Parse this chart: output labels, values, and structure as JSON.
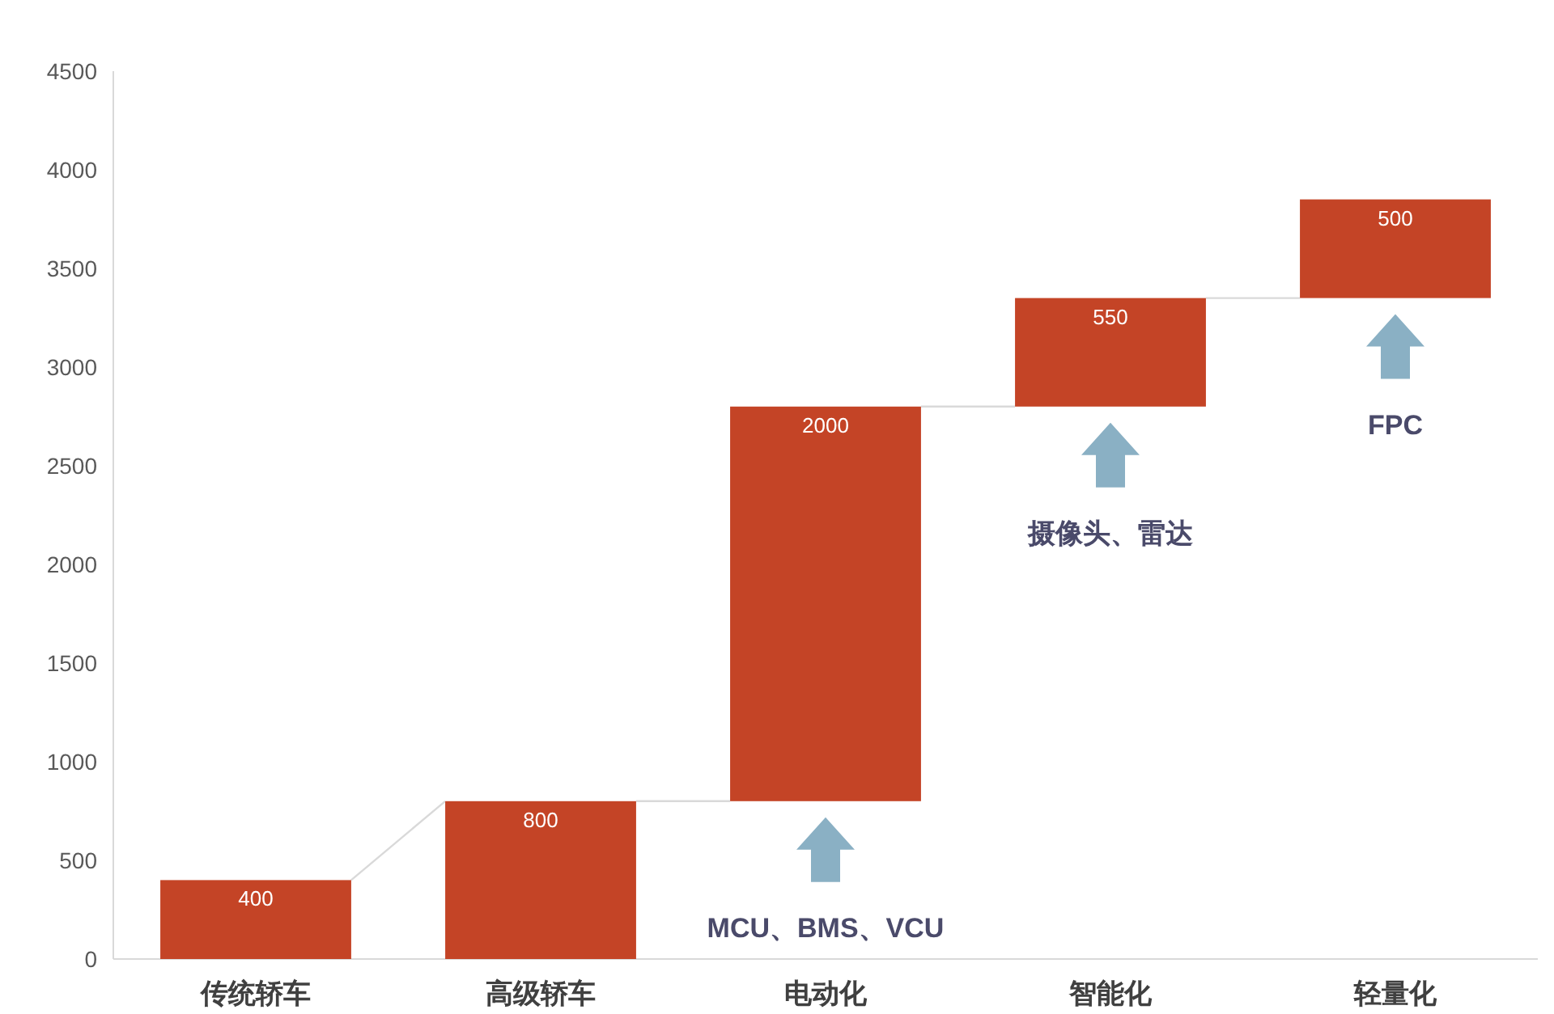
{
  "chart_data": {
    "type": "bar",
    "categories": [
      "传统轿车",
      "高级轿车",
      "电动化",
      "智能化",
      "轻量化"
    ],
    "values": [
      400,
      800,
      2000,
      550,
      500
    ],
    "base": [
      0,
      0,
      800,
      2800,
      3350
    ],
    "color": "#c44426",
    "data_labels": true,
    "ylim": [
      0,
      4500
    ],
    "yticks": [
      0,
      500,
      1000,
      1500,
      2000,
      2500,
      3000,
      3500,
      4000,
      4500
    ],
    "grid": false,
    "annotations": [
      "MCU、BMS、VCU",
      "摄像头、雷达",
      "FPC"
    ]
  }
}
